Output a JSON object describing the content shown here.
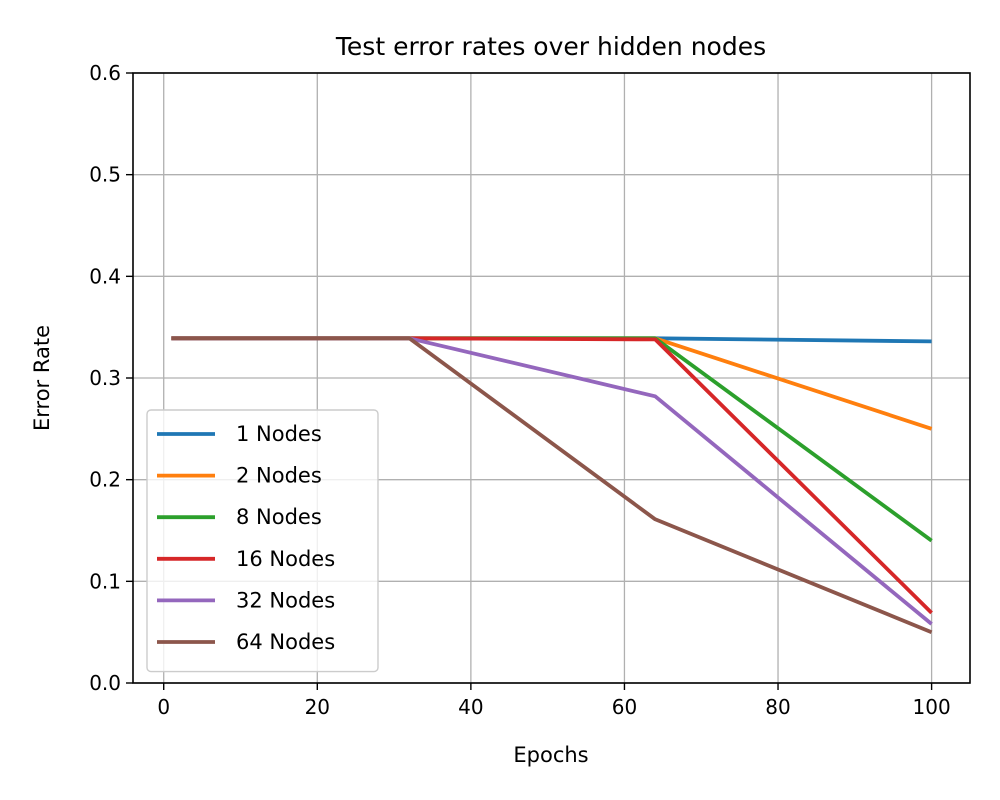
{
  "chart_data": {
    "type": "line",
    "title": "Test error rates over hidden nodes",
    "xlabel": "Epochs",
    "ylabel": "Error Rate",
    "xlim": [
      -4,
      105
    ],
    "ylim": [
      0.0,
      0.6
    ],
    "xticks": [
      0,
      20,
      40,
      60,
      80,
      100
    ],
    "xtick_labels": [
      "0",
      "20",
      "40",
      "60",
      "80",
      "100"
    ],
    "yticks": [
      0.0,
      0.1,
      0.2,
      0.3,
      0.4,
      0.5,
      0.6
    ],
    "ytick_labels": [
      "0.0",
      "0.1",
      "0.2",
      "0.3",
      "0.4",
      "0.5",
      "0.6"
    ],
    "grid": true,
    "legend_position": "lower-left",
    "series": [
      {
        "name": "1 Nodes",
        "color": "#1f77b4",
        "x": [
          1,
          32,
          64,
          100
        ],
        "y": [
          0.339,
          0.339,
          0.339,
          0.336
        ]
      },
      {
        "name": "2 Nodes",
        "color": "#ff7f0e",
        "x": [
          1,
          32,
          64,
          100
        ],
        "y": [
          0.339,
          0.339,
          0.339,
          0.25
        ]
      },
      {
        "name": "8 Nodes",
        "color": "#2ca02c",
        "x": [
          1,
          32,
          64,
          100
        ],
        "y": [
          0.339,
          0.339,
          0.339,
          0.14
        ]
      },
      {
        "name": "16 Nodes",
        "color": "#d62728",
        "x": [
          1,
          32,
          64,
          100
        ],
        "y": [
          0.339,
          0.339,
          0.338,
          0.069
        ]
      },
      {
        "name": "32 Nodes",
        "color": "#9467bd",
        "x": [
          1,
          32,
          64,
          100
        ],
        "y": [
          0.339,
          0.339,
          0.282,
          0.058
        ]
      },
      {
        "name": "64 Nodes",
        "color": "#8c564b",
        "x": [
          1,
          32,
          64,
          100
        ],
        "y": [
          0.339,
          0.339,
          0.161,
          0.05
        ]
      }
    ]
  }
}
